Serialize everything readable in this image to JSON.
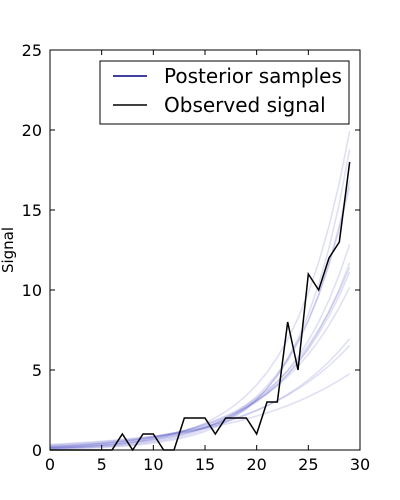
{
  "chart_data": {
    "type": "line",
    "title": "",
    "xlabel": "",
    "ylabel": "Signal",
    "xlim": [
      0,
      30
    ],
    "ylim": [
      0,
      25
    ],
    "xticks": [
      0,
      5,
      10,
      15,
      20,
      25,
      30
    ],
    "yticks": [
      0,
      5,
      10,
      15,
      20,
      25
    ],
    "grid": false,
    "legend": {
      "position": "top-right"
    },
    "series": [
      {
        "name": "Posterior samples",
        "color": "#0000aa",
        "style": "translucent multiple curves",
        "curves": [
          [
            0.12,
            0.14,
            0.17,
            0.2,
            0.24,
            0.29,
            0.34,
            0.41,
            0.49,
            0.58,
            0.7,
            0.83,
            0.99,
            1.18,
            1.41,
            1.68,
            2.01,
            2.4,
            2.86,
            3.41,
            4.07,
            4.85,
            5.79,
            6.91,
            8.24,
            9.83,
            11.73,
            14.0,
            16.7,
            19.93
          ],
          [
            0.2,
            0.23,
            0.26,
            0.3,
            0.35,
            0.4,
            0.46,
            0.53,
            0.61,
            0.7,
            0.8,
            0.92,
            1.06,
            1.22,
            1.4,
            1.61,
            1.85,
            2.13,
            2.45,
            2.82,
            3.24,
            3.73,
            4.29,
            4.93,
            5.67,
            6.53,
            7.51,
            8.63,
            9.93,
            11.42
          ],
          [
            0.3,
            0.33,
            0.37,
            0.41,
            0.45,
            0.5,
            0.56,
            0.62,
            0.69,
            0.77,
            0.85,
            0.95,
            1.06,
            1.18,
            1.31,
            1.46,
            1.62,
            1.8,
            2.01,
            2.24,
            2.49,
            2.77,
            3.08,
            3.43,
            3.82,
            4.25,
            4.73,
            5.27,
            5.87,
            6.53
          ],
          [
            0.08,
            0.1,
            0.12,
            0.14,
            0.17,
            0.2,
            0.24,
            0.29,
            0.35,
            0.42,
            0.51,
            0.61,
            0.73,
            0.88,
            1.06,
            1.27,
            1.53,
            1.84,
            2.21,
            2.66,
            3.2,
            3.85,
            4.63,
            5.57,
            6.7,
            8.06,
            9.69,
            11.66,
            14.03,
            16.88
          ],
          [
            0.25,
            0.28,
            0.31,
            0.35,
            0.39,
            0.44,
            0.49,
            0.55,
            0.62,
            0.69,
            0.78,
            0.87,
            0.98,
            1.1,
            1.23,
            1.38,
            1.55,
            1.74,
            1.95,
            2.19,
            2.46,
            2.76,
            3.1,
            3.48,
            3.9,
            4.38,
            4.92,
            5.52,
            6.2,
            6.96
          ],
          [
            0.1,
            0.12,
            0.14,
            0.17,
            0.2,
            0.24,
            0.28,
            0.34,
            0.4,
            0.48,
            0.57,
            0.68,
            0.81,
            0.97,
            1.16,
            1.38,
            1.65,
            1.97,
            2.35,
            2.8,
            3.35,
            4.0,
            4.77,
            5.7,
            6.8,
            8.12,
            9.69,
            11.57,
            13.81,
            16.48
          ],
          [
            0.18,
            0.21,
            0.24,
            0.28,
            0.32,
            0.37,
            0.42,
            0.49,
            0.56,
            0.65,
            0.75,
            0.86,
            0.99,
            1.14,
            1.32,
            1.52,
            1.75,
            2.02,
            2.33,
            2.68,
            3.09,
            3.56,
            4.11,
            4.74,
            5.46,
            6.3,
            7.26,
            8.37,
            9.65,
            11.12
          ],
          [
            0.15,
            0.17,
            0.2,
            0.23,
            0.27,
            0.31,
            0.36,
            0.42,
            0.49,
            0.57,
            0.66,
            0.77,
            0.9,
            1.04,
            1.21,
            1.41,
            1.64,
            1.91,
            2.22,
            2.58,
            3.0,
            3.49,
            4.06,
            4.72,
            5.49,
            6.39,
            7.43,
            8.65,
            10.06,
            11.7
          ],
          [
            0.06,
            0.07,
            0.09,
            0.11,
            0.13,
            0.16,
            0.2,
            0.24,
            0.29,
            0.35,
            0.43,
            0.53,
            0.64,
            0.78,
            0.95,
            1.16,
            1.42,
            1.73,
            2.11,
            2.57,
            3.14,
            3.83,
            4.67,
            5.7,
            6.95,
            8.48,
            10.35,
            12.62,
            15.4,
            18.79
          ],
          [
            0.35,
            0.38,
            0.42,
            0.46,
            0.5,
            0.55,
            0.6,
            0.66,
            0.72,
            0.79,
            0.86,
            0.94,
            1.03,
            1.13,
            1.24,
            1.35,
            1.48,
            1.62,
            1.77,
            1.94,
            2.12,
            2.32,
            2.54,
            2.78,
            3.04,
            3.33,
            3.64,
            3.98,
            4.36,
            4.77
          ],
          [
            0.13,
            0.15,
            0.18,
            0.21,
            0.25,
            0.29,
            0.34,
            0.4,
            0.47,
            0.55,
            0.64,
            0.75,
            0.88,
            1.03,
            1.2,
            1.41,
            1.65,
            1.93,
            2.26,
            2.65,
            3.1,
            3.63,
            4.25,
            4.98,
            5.83,
            6.83,
            8.0,
            9.37,
            10.97,
            12.85
          ],
          [
            0.22,
            0.25,
            0.28,
            0.32,
            0.37,
            0.42,
            0.48,
            0.55,
            0.63,
            0.72,
            0.82,
            0.94,
            1.07,
            1.22,
            1.39,
            1.59,
            1.81,
            2.07,
            2.36,
            2.7,
            3.08,
            3.52,
            4.02,
            4.59,
            5.24,
            5.98,
            6.83,
            7.8,
            8.91,
            10.17
          ]
        ]
      },
      {
        "name": "Observed signal",
        "color": "#000000",
        "x": [
          0,
          1,
          2,
          3,
          4,
          5,
          6,
          7,
          8,
          9,
          10,
          11,
          12,
          13,
          14,
          15,
          16,
          17,
          18,
          19,
          20,
          21,
          22,
          23,
          24,
          25,
          26,
          27,
          28,
          29
        ],
        "y": [
          0,
          0,
          0,
          0,
          0,
          0,
          0,
          1,
          0,
          1,
          1,
          0,
          0,
          2,
          2,
          2,
          1,
          2,
          2,
          2,
          1,
          3,
          3,
          8,
          5,
          11,
          10,
          12,
          13,
          18
        ]
      }
    ]
  }
}
